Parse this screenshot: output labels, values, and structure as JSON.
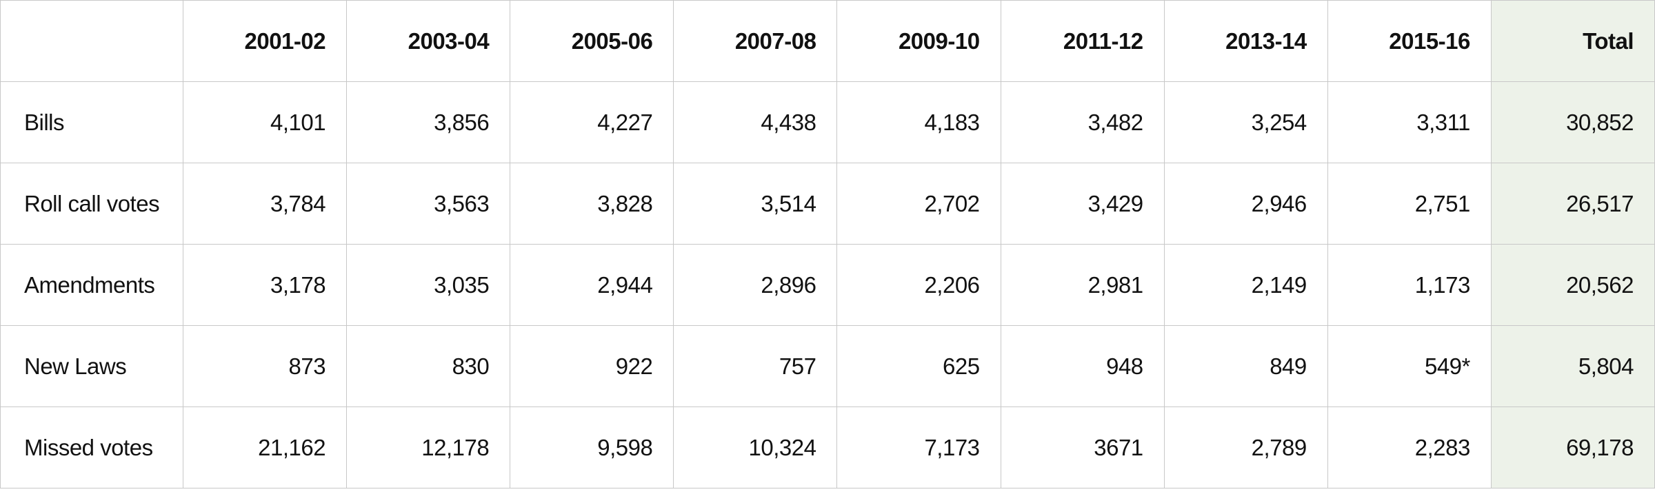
{
  "table": {
    "headers": [
      "2001-02",
      "2003-04",
      "2005-06",
      "2007-08",
      "2009-10",
      "2011-12",
      "2013-14",
      "2015-16",
      "Total"
    ],
    "rows": [
      [
        "Bills",
        "4,101",
        "3,856",
        "4,227",
        "4,438",
        "4,183",
        "3,482",
        "3,254",
        "3,311",
        "30,852"
      ],
      [
        "Roll call votes",
        "3,784",
        "3,563",
        "3,828",
        "3,514",
        "2,702",
        "3,429",
        "2,946",
        "2,751",
        "26,517"
      ],
      [
        "Amendments",
        "3,178",
        "3,035",
        "2,944",
        "2,896",
        "2,206",
        "2,981",
        "2,149",
        "1,173",
        "20,562"
      ],
      [
        "New Laws",
        "873",
        "830",
        "922",
        "757",
        "625",
        "948",
        "849",
        "549*",
        "5,804"
      ],
      [
        "Missed votes",
        "21,162",
        "12,178",
        "9,598",
        "10,324",
        "7,173",
        "3671",
        "2,789",
        "2,283",
        "69,178"
      ]
    ]
  }
}
